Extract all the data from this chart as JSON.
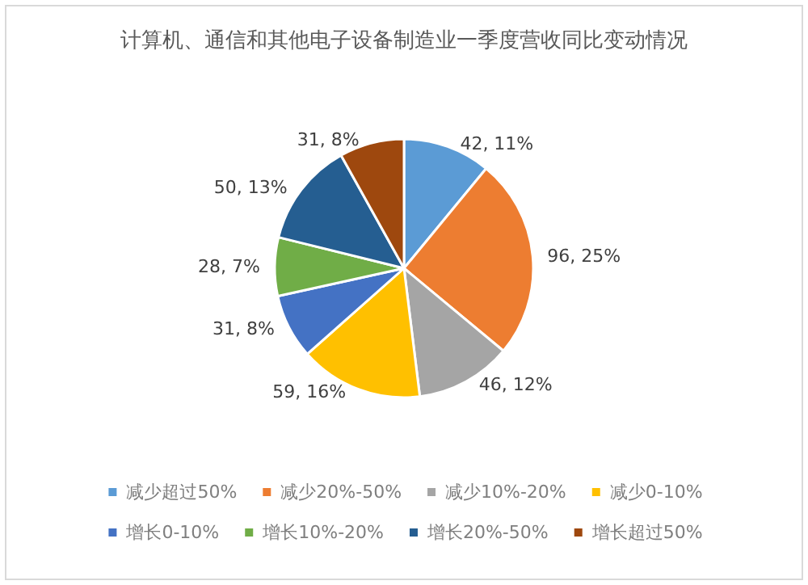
{
  "chart_data": {
    "type": "pie",
    "title": "计算机、通信和其他电子设备制造业一季度营收同比变动情况",
    "categories": [
      "减少超过50%",
      "减少20%-50%",
      "减少10%-20%",
      "减少0-10%",
      "增长0-10%",
      "增长10%-20%",
      "增长20%-50%",
      "增长超过50%"
    ],
    "values": [
      42,
      96,
      46,
      59,
      31,
      28,
      50,
      31
    ],
    "value_labels": [
      "42, 11%",
      "96, 25%",
      "46, 12%",
      "59, 16%",
      "31, 8%",
      "28, 7%",
      "50, 13%",
      "31, 8%"
    ],
    "colors": [
      "#5b9bd5",
      "#ed7d31",
      "#a5a5a5",
      "#ffc000",
      "#4472c4",
      "#70ad47",
      "#255e91",
      "#9e480e"
    ],
    "legend": "bottom"
  }
}
